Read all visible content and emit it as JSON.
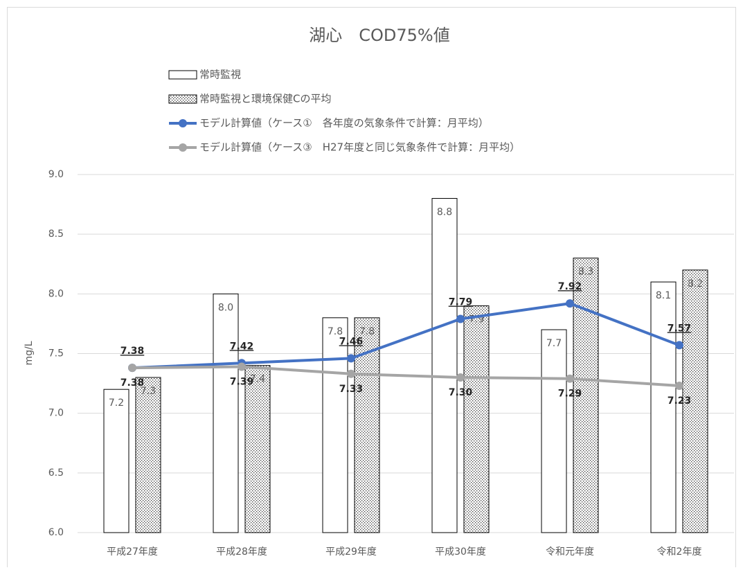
{
  "chart_data": {
    "type": "combo",
    "title": "湖心　COD75%値",
    "y_label": "mg/L",
    "categories": [
      "平成27年度",
      "平成28年度",
      "平成29年度",
      "平成30年度",
      "令和元年度",
      "令和2年度"
    ],
    "series": [
      {
        "name": "常時監視",
        "type": "bar",
        "color": "#ffffff",
        "values": [
          7.2,
          8.0,
          7.8,
          8.8,
          7.7,
          8.1
        ],
        "value_labels": [
          "7.2",
          "8.0",
          "7.8",
          "8.8",
          "7.7",
          "8.1"
        ]
      },
      {
        "name": "常時監視と環境保健Cの平均",
        "type": "bar",
        "pattern": "dots",
        "color": "#ffffff",
        "values": [
          7.3,
          7.4,
          7.8,
          7.9,
          8.3,
          8.2
        ],
        "value_labels": [
          "7.3",
          "7.4",
          "7.8",
          "7.9",
          "8.3",
          "8.2"
        ]
      },
      {
        "name": "モデル計算値（ケース①　各年度の気象条件で計算：月平均）",
        "type": "line",
        "color": "#4472c4",
        "values": [
          7.38,
          7.42,
          7.46,
          7.79,
          7.92,
          7.57
        ],
        "value_labels": [
          "7.38",
          "7.42",
          "7.46",
          "7.79",
          "7.92",
          "7.57"
        ]
      },
      {
        "name": "モデル計算値（ケース③　H27年度と同じ気象条件で計算：月平均）",
        "type": "line",
        "color": "#a5a5a5",
        "values": [
          7.38,
          7.39,
          7.33,
          7.3,
          7.29,
          7.23
        ],
        "value_labels": [
          "7.38",
          "7.39",
          "7.33",
          "7.30",
          "7.29",
          "7.23"
        ]
      }
    ],
    "ylim": [
      6.0,
      9.0
    ],
    "yticks": [
      {
        "value": 6,
        "label": "6.0"
      },
      {
        "value": 6.5,
        "label": "6.5"
      },
      {
        "value": 7,
        "label": "7.0"
      },
      {
        "value": 7.5,
        "label": "7.5"
      },
      {
        "value": 8,
        "label": "8.0"
      },
      {
        "value": 8.5,
        "label": "8.5"
      },
      {
        "value": 9,
        "label": "9.0"
      }
    ],
    "grid": true,
    "legend": "top"
  }
}
